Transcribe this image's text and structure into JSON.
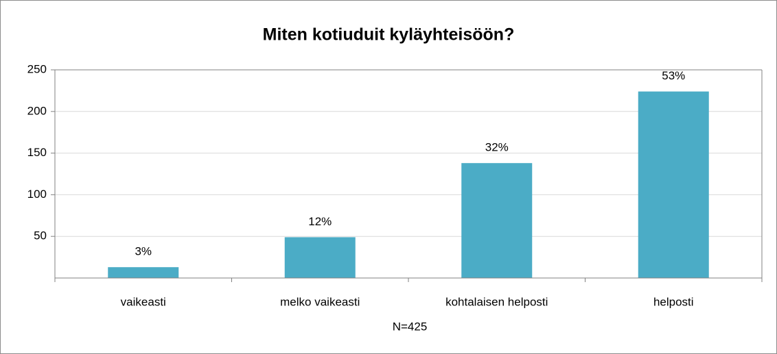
{
  "chart_data": {
    "type": "bar",
    "title": "Miten kotiuduit kyläyhteisöön?",
    "x_label": "N=425",
    "categories": [
      "vaikeasti",
      "melko vaikeasti",
      "kohtalaisen helposti",
      "helposti"
    ],
    "values": [
      13,
      49,
      138,
      224
    ],
    "percent_labels": [
      "3%",
      "12%",
      "32%",
      "53%"
    ],
    "color": "#4bacc6",
    "ylim": [
      0,
      250
    ],
    "yticks": [
      50,
      100,
      150,
      200,
      250
    ],
    "grid": true
  }
}
